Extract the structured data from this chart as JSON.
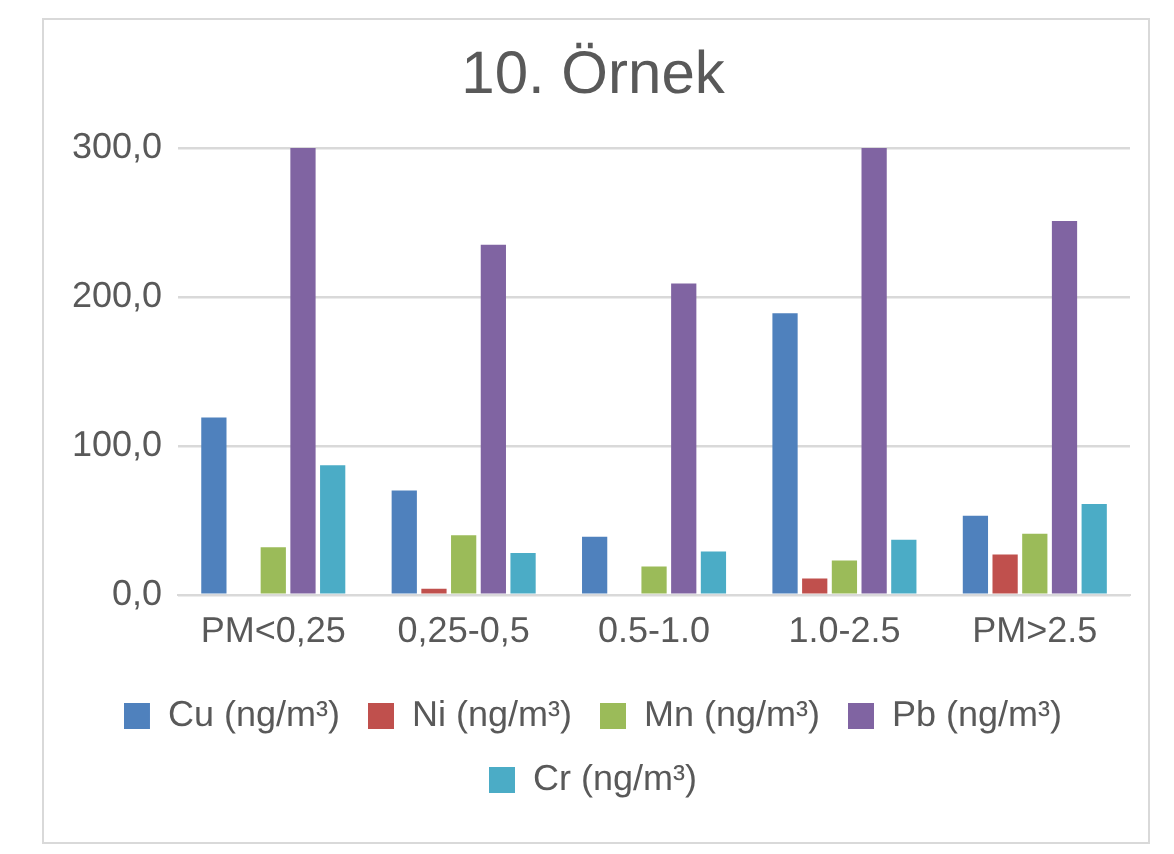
{
  "chart_data": {
    "type": "bar",
    "title": "10. Örnek",
    "categories": [
      "PM<0,25",
      "0,25-0,5",
      "0.5-1.0",
      "1.0-2.5",
      "PM>2.5"
    ],
    "series": [
      {
        "name": "Cu (ng/m³)",
        "color": "#4f81bd",
        "values": [
          119,
          70,
          39,
          189,
          53
        ]
      },
      {
        "name": "Ni (ng/m³)",
        "color": "#c0504d",
        "values": [
          0,
          4,
          0,
          11,
          27
        ]
      },
      {
        "name": "Mn (ng/m³)",
        "color": "#9bbb59",
        "values": [
          32,
          40,
          19,
          23,
          41
        ]
      },
      {
        "name": "Pb (ng/m³)",
        "color": "#8064a2",
        "values": [
          300,
          235,
          209,
          300,
          251
        ]
      },
      {
        "name": "Cr (ng/m³)",
        "color": "#4bacc6",
        "values": [
          87,
          28,
          29,
          37,
          61
        ]
      }
    ],
    "ylim": [
      0,
      300
    ],
    "yticks": [
      {
        "value": 0,
        "label": "0,0"
      },
      {
        "value": 100,
        "label": "100,0"
      },
      {
        "value": 200,
        "label": "200,0"
      },
      {
        "value": 300,
        "label": "300,0"
      }
    ],
    "grid": "y",
    "legend": "bottom"
  }
}
